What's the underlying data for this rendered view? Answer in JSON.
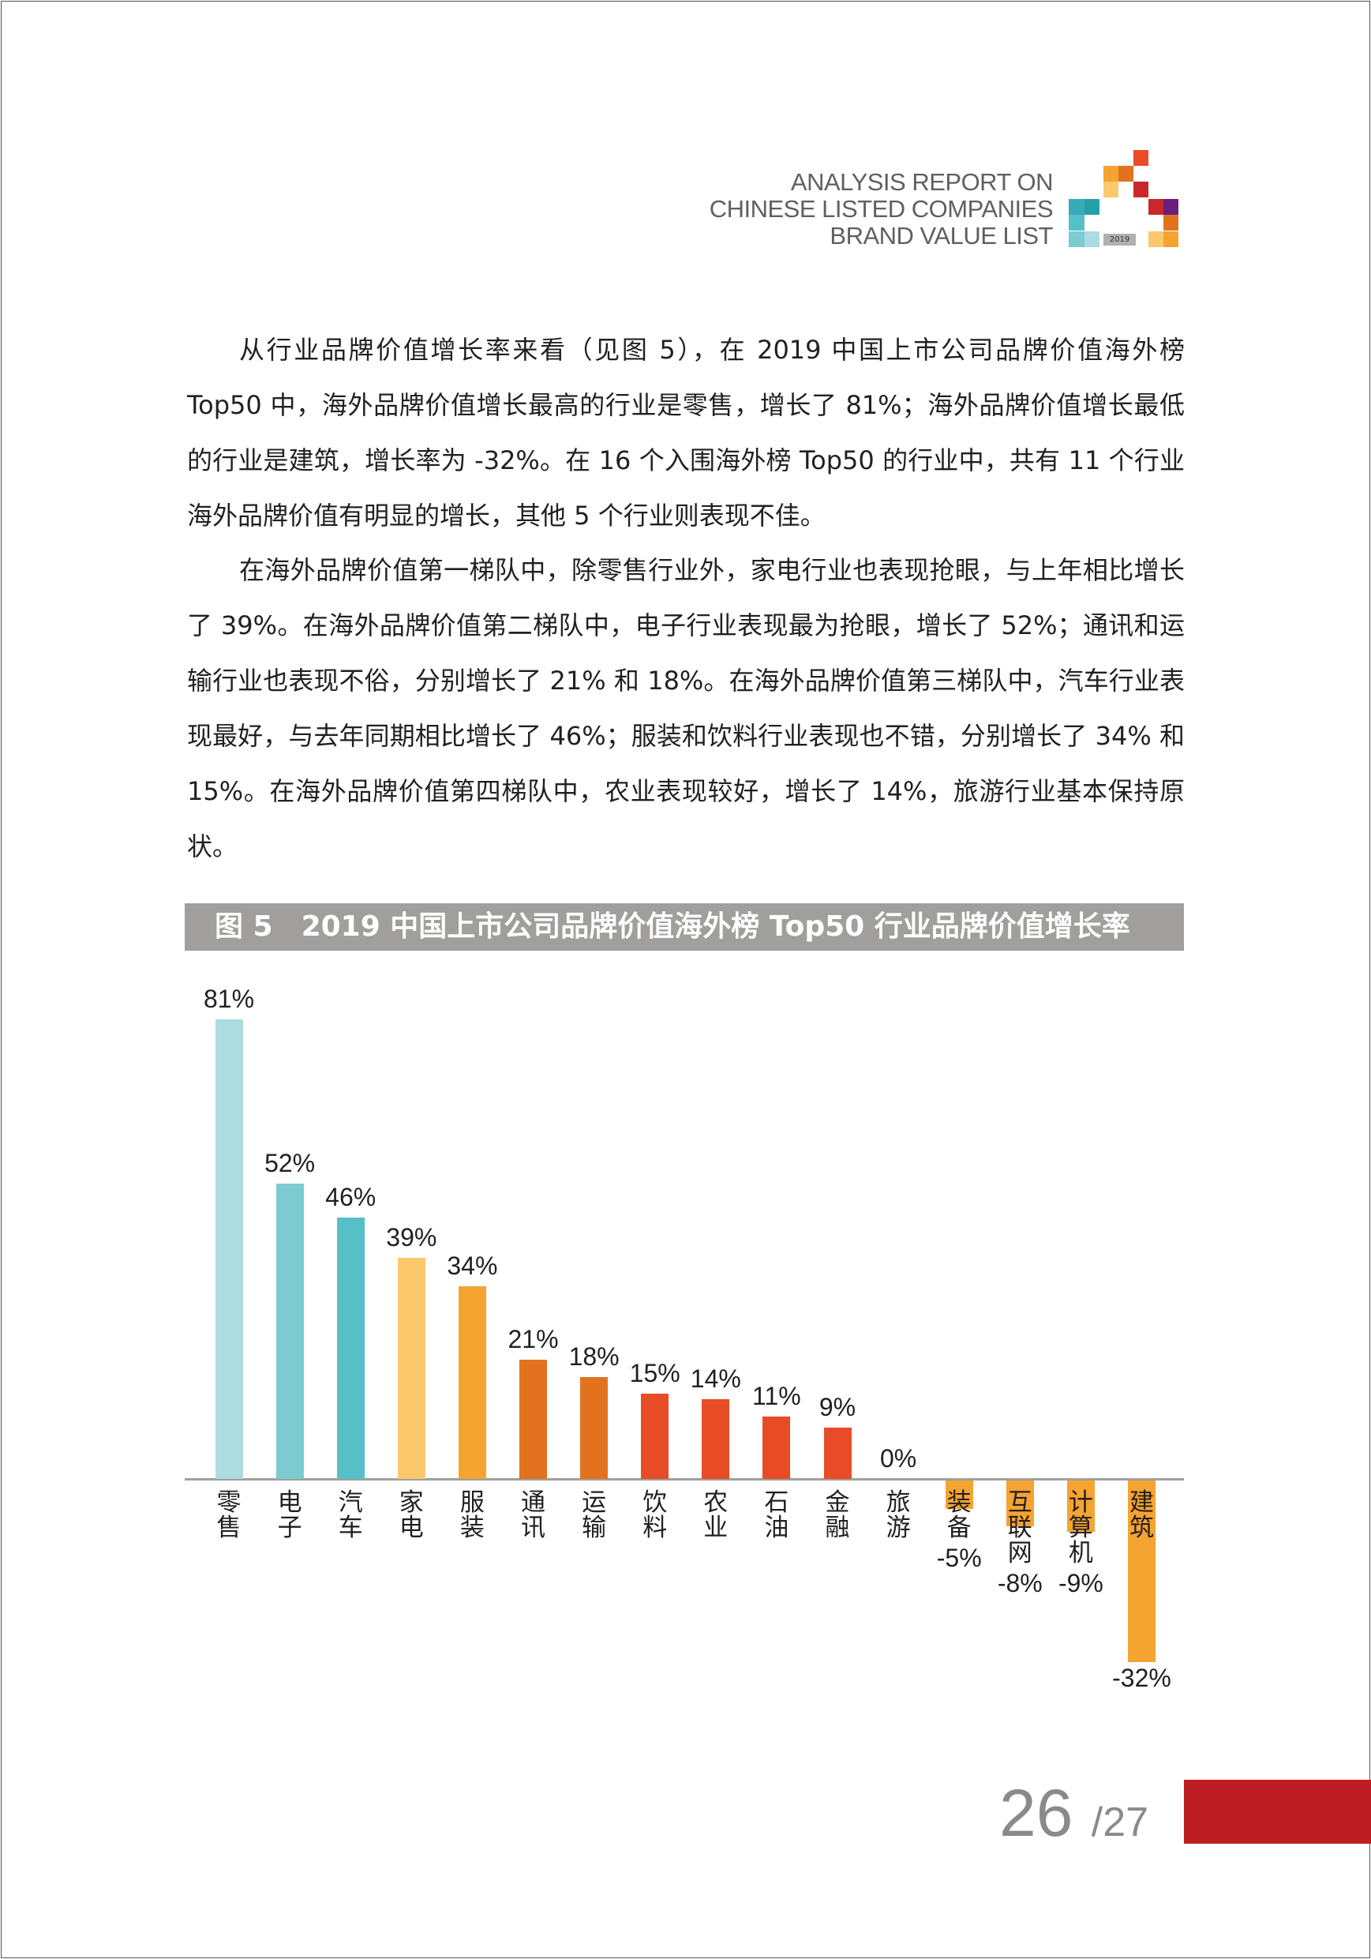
{
  "header": {
    "lines": [
      "ANALYSIS REPORT ON",
      "CHINESE LISTED COMPANIES",
      "BRAND VALUE LIST"
    ],
    "logo_year": "2019"
  },
  "paragraphs": [
    "从行业品牌价值增长率来看（见图 5），在 2019 中国上市公司品牌价值海外榜 Top50 中，海外品牌价值增长最高的行业是零售，增长了 81%；海外品牌价值增长最低的行业是建筑，增长率为 -32%。在 16 个入围海外榜 Top50 的行业中，共有 11 个行业海外品牌价值有明显的增长，其他 5 个行业则表现不佳。",
    "在海外品牌价值第一梯队中，除零售行业外，家电行业也表现抢眼，与上年相比增长了 39%。在海外品牌价值第二梯队中，电子行业表现最为抢眼，增长了 52%；通讯和运输行业也表现不俗，分别增长了 21% 和 18%。在海外品牌价值第三梯队中，汽车行业表现最好，与去年同期相比增长了 46%；服装和饮料行业表现也不错，分别增长了 34% 和 15%。在海外品牌价值第四梯队中，农业表现较好，增长了 14%，旅游行业基本保持原状。"
  ],
  "figure_title": "图 5　2019 中国上市公司品牌价值海外榜 Top50 行业品牌价值增长率",
  "chart_data": {
    "type": "bar",
    "title": "图 5　2019 中国上市公司品牌价值海外榜 Top50 行业品牌价值增长率",
    "categories": [
      "零售",
      "电子",
      "汽车",
      "家电",
      "服装",
      "通讯",
      "运输",
      "饮料",
      "农业",
      "石油",
      "金融",
      "旅游",
      "装备",
      "互联网",
      "计算机",
      "建筑"
    ],
    "values": [
      81,
      52,
      46,
      39,
      34,
      21,
      18,
      15,
      14,
      11,
      9,
      0,
      -5,
      -8,
      -9,
      -32
    ],
    "labels": [
      "81%",
      "52%",
      "46%",
      "39%",
      "34%",
      "21%",
      "18%",
      "15%",
      "14%",
      "11%",
      "9%",
      "0%",
      "-5%",
      "-8%",
      "-9%",
      "-32%"
    ],
    "unit": "%",
    "colors": [
      "#acdbe0",
      "#7ccbd0",
      "#56c0c9",
      "#fbc96c",
      "#f5a331",
      "#e2721e",
      "#e2721e",
      "#e84c26",
      "#e84c26",
      "#e84c26",
      "#e84c26",
      "#e84c26",
      "#f5a331",
      "#f5a331",
      "#f5a331",
      "#f5a331"
    ],
    "ylim": [
      -32,
      81
    ],
    "grid": false,
    "legend": "none"
  },
  "page": {
    "current": "26",
    "total": "/27"
  }
}
